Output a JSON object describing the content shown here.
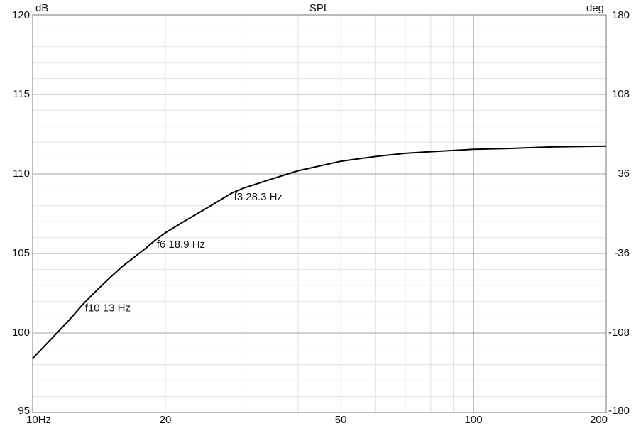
{
  "chart_data": {
    "type": "line",
    "title": "SPL",
    "y_label": "dB",
    "y2_label": "deg",
    "log_x": true,
    "xlim": [
      10,
      200
    ],
    "xticks": [
      {
        "value": 10,
        "label": "10Hz"
      },
      20,
      50,
      100,
      200
    ],
    "x_minor_gridlines": [
      30,
      40,
      60,
      70,
      80,
      90
    ],
    "ylim": [
      95,
      120
    ],
    "yticks": [
      95,
      100,
      105,
      110,
      115,
      120
    ],
    "y_minor_gridlines": [
      96,
      97,
      98,
      99,
      101,
      102,
      103,
      104,
      106,
      107,
      108,
      109,
      111,
      112,
      113,
      114,
      116,
      117,
      118,
      119
    ],
    "y2lim": [
      -180,
      180
    ],
    "y2ticks": [
      180,
      108,
      36,
      -36,
      -108,
      -180
    ],
    "x": [
      10,
      11,
      12,
      13,
      14,
      15,
      16,
      18,
      18.9,
      20,
      22,
      25,
      28.3,
      30,
      35,
      40,
      50,
      60,
      70,
      80,
      100,
      120,
      150,
      200
    ],
    "series": [
      {
        "name": "SPL",
        "color": "#000000",
        "values": [
          98.4,
          99.6,
          100.7,
          101.8,
          102.7,
          103.5,
          104.2,
          105.3,
          105.8,
          106.3,
          107.0,
          107.9,
          108.8,
          109.1,
          109.7,
          110.2,
          110.8,
          111.1,
          111.3,
          111.4,
          111.55,
          111.6,
          111.7,
          111.75
        ]
      }
    ],
    "annotations": [
      {
        "text": "f10 13 Hz",
        "x": 13,
        "y": 101.8
      },
      {
        "text": "f6 18.9 Hz",
        "x": 18.9,
        "y": 105.8
      },
      {
        "text": "f3 28.3 Hz",
        "x": 28.3,
        "y": 108.8
      }
    ]
  }
}
